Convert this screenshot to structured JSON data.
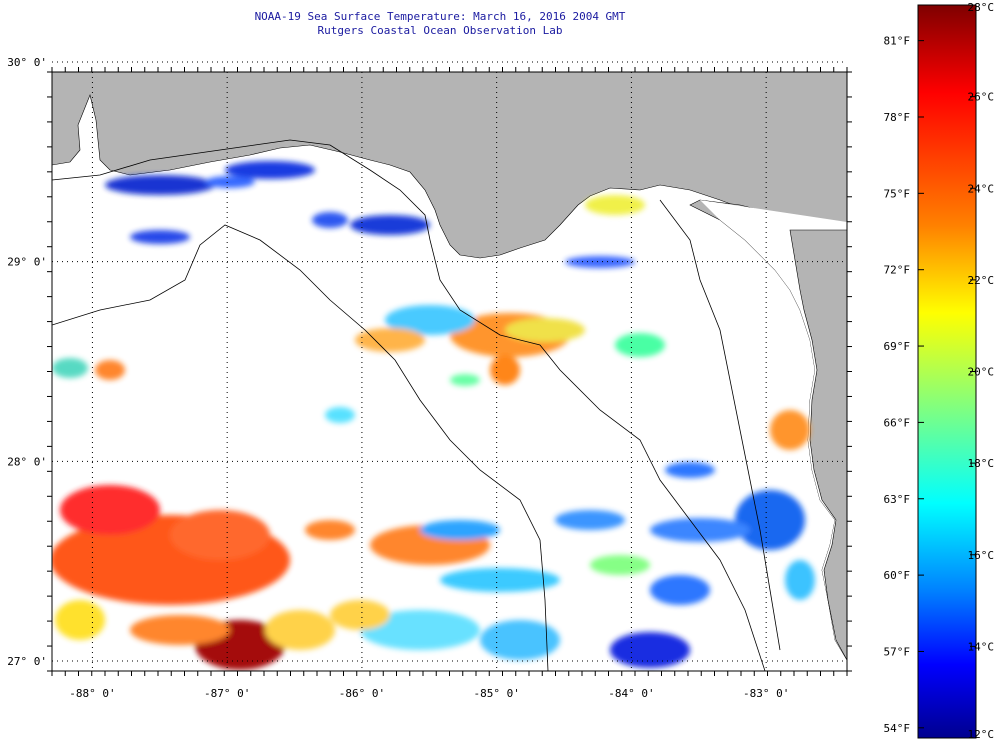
{
  "header": {
    "title": "NOAA-19 Sea Surface Temperature:  March 16, 2016 2004 GMT",
    "subtitle": "Rutgers Coastal Ocean Observation Lab"
  },
  "map": {
    "lon_range": [
      -88.3,
      -82.4
    ],
    "lat_range": [
      26.95,
      29.95
    ],
    "lat_ticks": [
      {
        "value": 30,
        "label": "30° 0'"
      },
      {
        "value": 29,
        "label": "29° 0'"
      },
      {
        "value": 28,
        "label": "28° 0'"
      },
      {
        "value": 27,
        "label": "27° 0'"
      }
    ],
    "lon_ticks": [
      {
        "value": -88,
        "label": "-88° 0'"
      },
      {
        "value": -87,
        "label": "-87° 0'"
      },
      {
        "value": -86,
        "label": "-86° 0'"
      },
      {
        "value": -85,
        "label": "-85° 0'"
      },
      {
        "value": -84,
        "label": "-84° 0'"
      },
      {
        "value": -83,
        "label": "-83° 0'"
      }
    ],
    "colors": {
      "land": "#b4b4b4",
      "no_data": "#ffffff",
      "grid": "#000000"
    }
  },
  "colorbar": {
    "celsius_labels": [
      "28°C",
      "26°C",
      "24°C",
      "22°C",
      "20°C",
      "18°C",
      "16°C",
      "14°C",
      "12°C"
    ],
    "fahrenheit_labels": [
      "81°F",
      "78°F",
      "75°F",
      "72°F",
      "69°F",
      "66°F",
      "63°F",
      "60°F",
      "57°F",
      "54°F"
    ],
    "stops": [
      "#7f0000",
      "#ff0000",
      "#ff8000",
      "#ffff00",
      "#80ff80",
      "#00ffff",
      "#0080ff",
      "#0000ff",
      "#00008f"
    ]
  }
}
